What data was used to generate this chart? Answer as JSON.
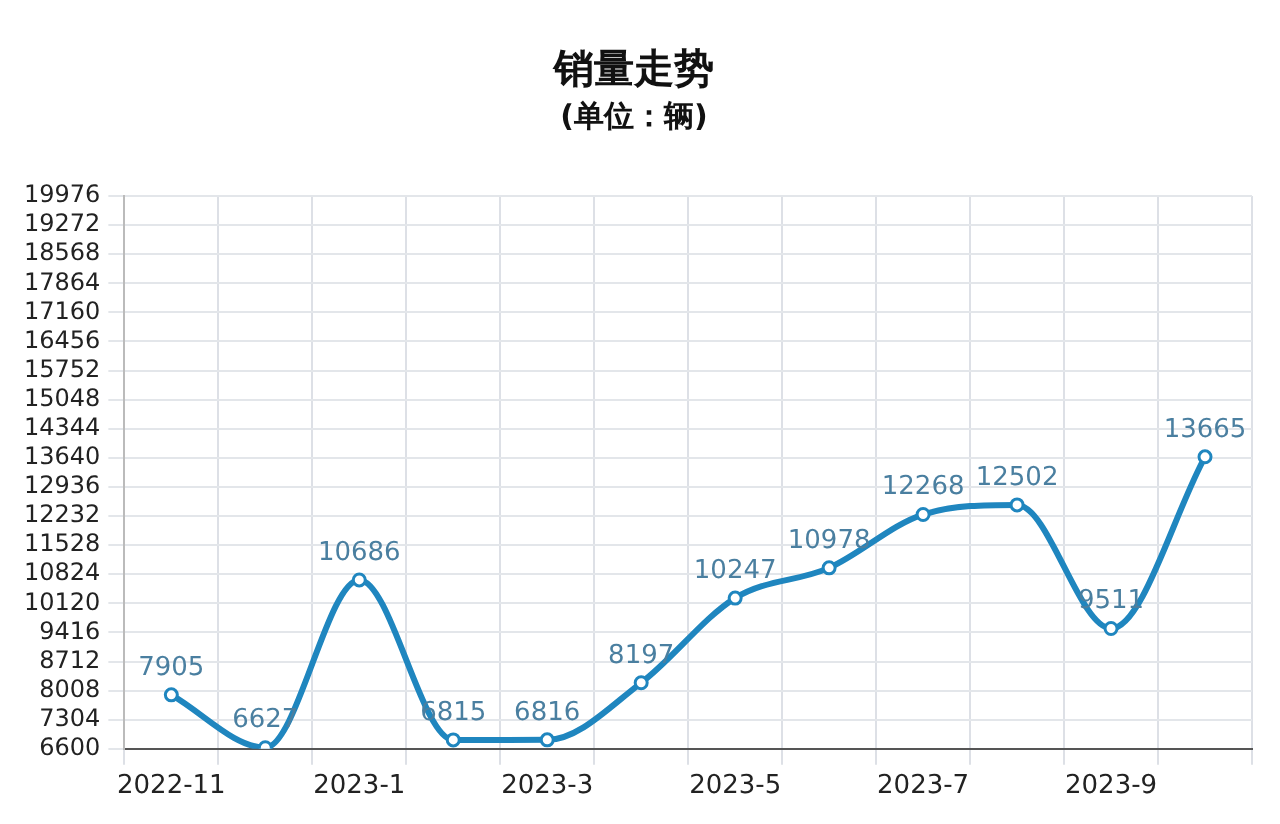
{
  "chart_data": {
    "type": "line",
    "title": "销量走势",
    "subtitle": "(单位：辆)",
    "categories": [
      "2022-11",
      null,
      "2023-1",
      null,
      "2023-3",
      null,
      "2023-5",
      null,
      "2023-7",
      null,
      "2023-9",
      null
    ],
    "series": [
      {
        "color": "#1f86bf",
        "values": [
          7905,
          6627,
          10686,
          6815,
          6816,
          8197,
          10247,
          10978,
          12268,
          12502,
          9511,
          13665
        ]
      }
    ],
    "ylim": [
      6600,
      19976
    ],
    "yticks": [
      6600,
      7304,
      8008,
      8712,
      9416,
      10120,
      10824,
      11528,
      12232,
      12936,
      13640,
      14344,
      15048,
      15752,
      16456,
      17160,
      17864,
      18568,
      19272,
      19976
    ],
    "grid": true,
    "data_labels": true,
    "marker": "circle",
    "legend": false
  }
}
